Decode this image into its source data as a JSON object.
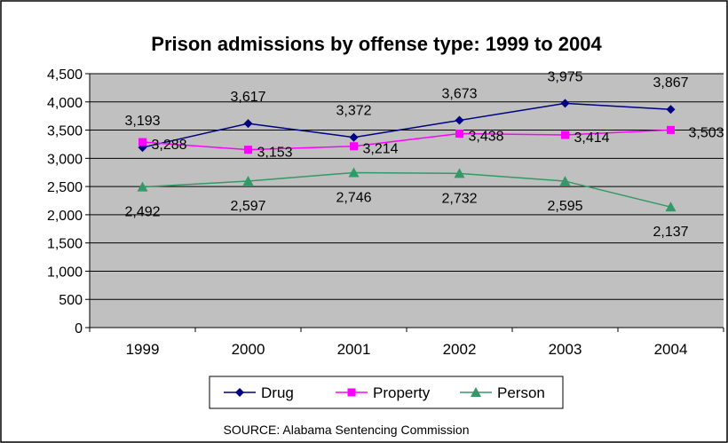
{
  "chart_data": {
    "type": "line",
    "title": "Prison admissions by offense type: 1999 to 2004",
    "categories": [
      "1999",
      "2000",
      "2001",
      "2002",
      "2003",
      "2004"
    ],
    "series": [
      {
        "name": "Drug",
        "values": [
          3193,
          3617,
          3372,
          3673,
          3975,
          3867
        ],
        "color": "#000080",
        "marker": "diamond"
      },
      {
        "name": "Property",
        "values": [
          3288,
          3153,
          3214,
          3438,
          3414,
          3503
        ],
        "color": "#FF00FF",
        "marker": "square"
      },
      {
        "name": "Person",
        "values": [
          2492,
          2597,
          2746,
          2732,
          2595,
          2137
        ],
        "color": "#339966",
        "marker": "triangle"
      }
    ],
    "ylim": [
      0,
      4500
    ],
    "ytick_step": 500,
    "grid": true,
    "plot_background": "#C0C0C0",
    "legend_position": "bottom",
    "source_note": "SOURCE: Alabama Sentencing Commission"
  }
}
